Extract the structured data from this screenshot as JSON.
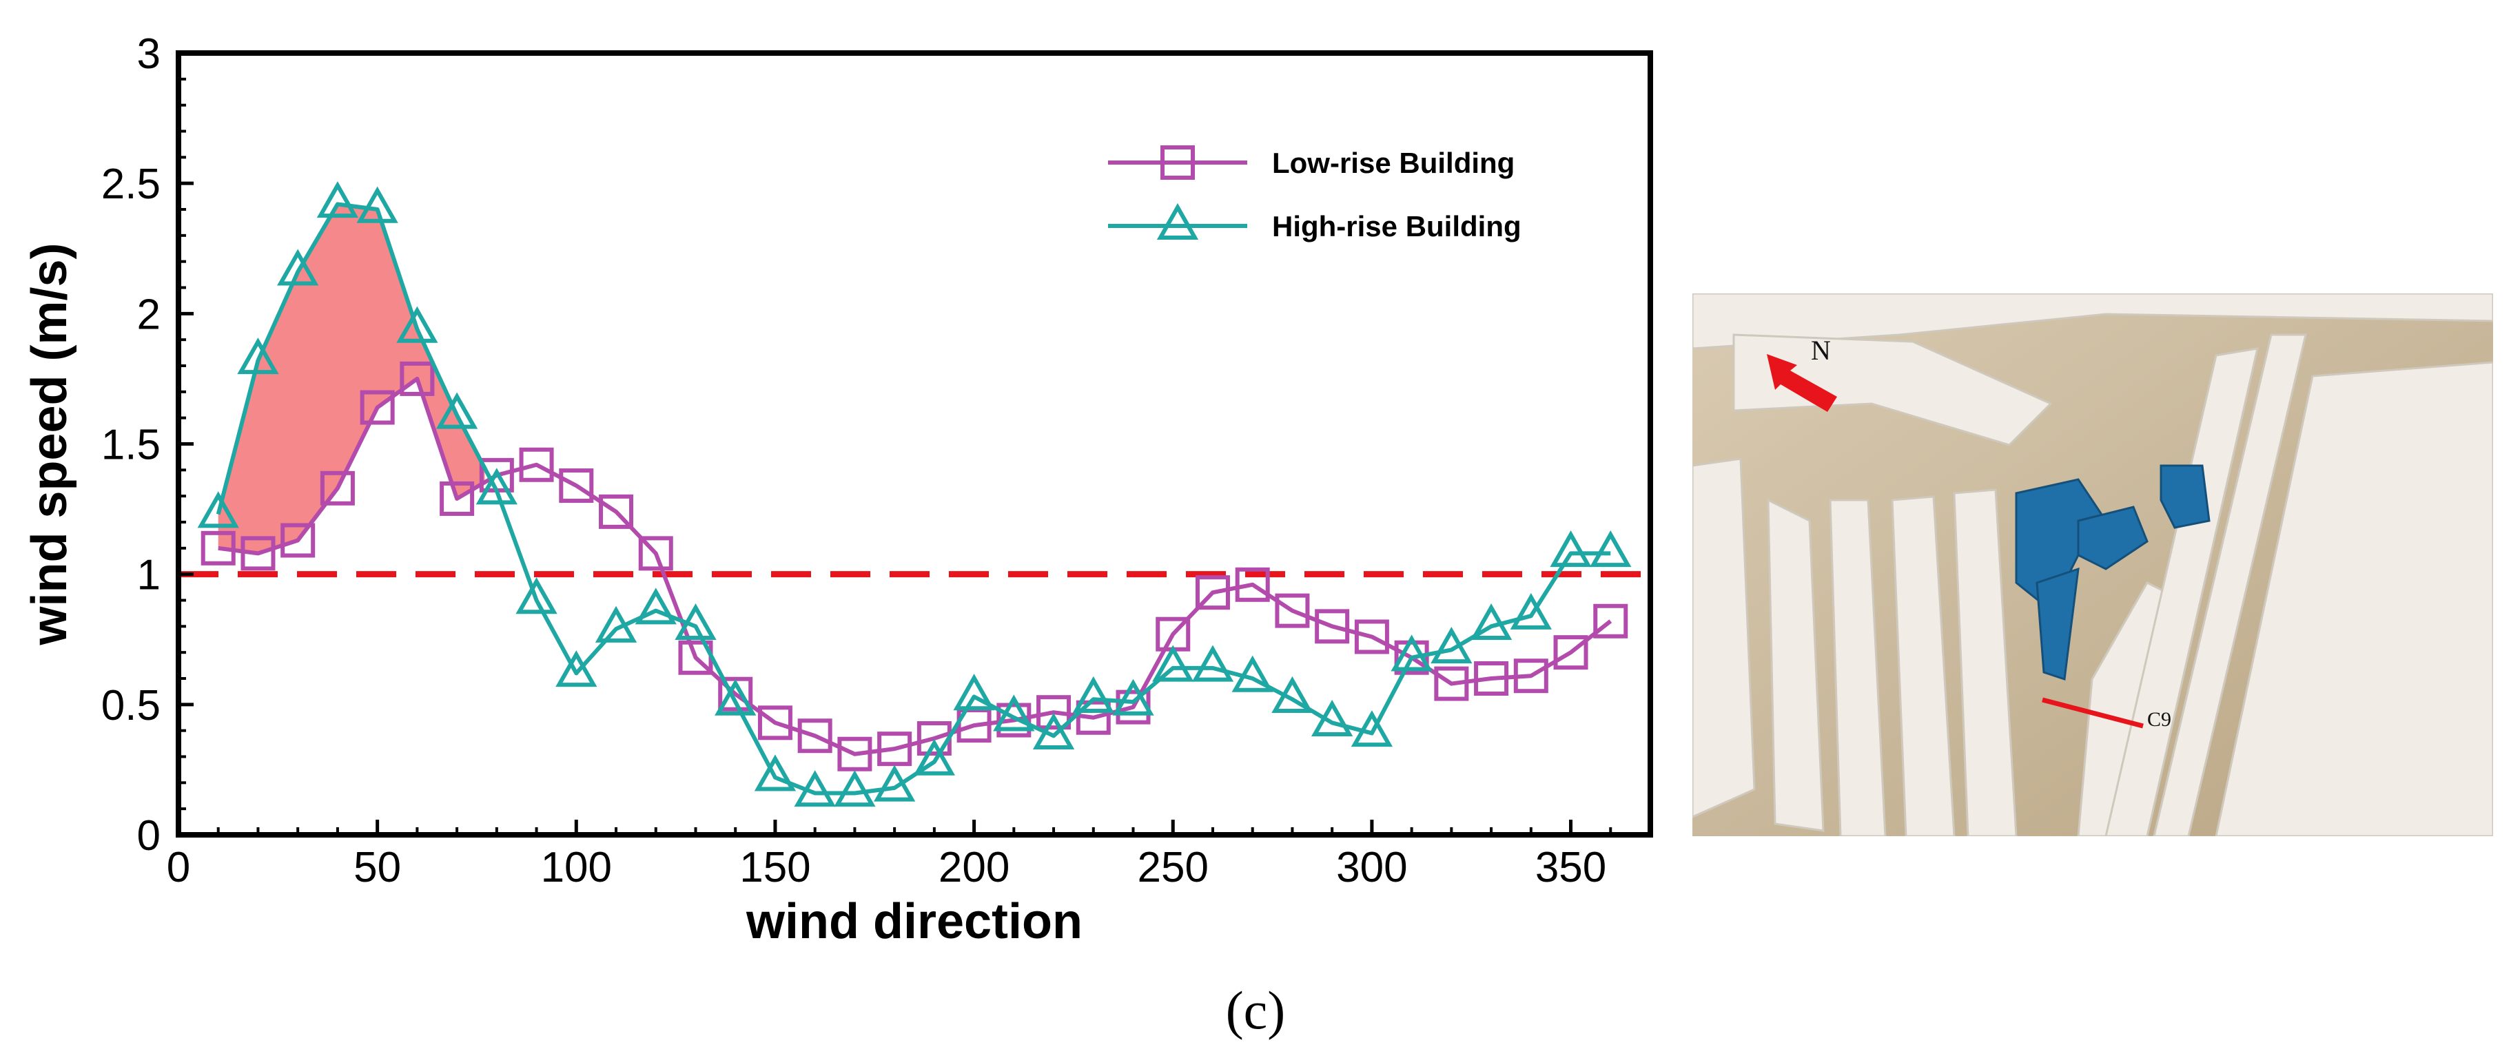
{
  "chart_data": {
    "type": "line",
    "xlabel": "wind direction",
    "ylabel": "wind speed (m/s)",
    "xlim": [
      0,
      370
    ],
    "ylim": [
      0,
      3
    ],
    "x_ticks": [
      0,
      50,
      100,
      150,
      200,
      250,
      300,
      350
    ],
    "y_ticks": [
      0,
      0.5,
      1,
      1.5,
      2,
      2.5,
      3
    ],
    "x_tick_labels": [
      "0",
      "50",
      "100",
      "150",
      "200",
      "250",
      "300",
      "350"
    ],
    "y_tick_labels": [
      "0",
      "0.5",
      "1",
      "1.5",
      "2",
      "2.5",
      "3"
    ],
    "grid": false,
    "legend_position": "top-right",
    "reference_line": {
      "y": 1,
      "style": "dashed",
      "color": "#e8141b"
    },
    "x": [
      10,
      20,
      30,
      40,
      50,
      60,
      70,
      80,
      90,
      100,
      110,
      120,
      130,
      140,
      150,
      160,
      170,
      180,
      190,
      200,
      210,
      220,
      230,
      240,
      250,
      260,
      270,
      280,
      290,
      300,
      310,
      320,
      330,
      340,
      350,
      360
    ],
    "series": [
      {
        "name": "Low-rise Building",
        "marker": "square",
        "color": "#b24bab",
        "values": [
          1.1,
          1.08,
          1.13,
          1.33,
          1.64,
          1.75,
          1.29,
          1.38,
          1.42,
          1.34,
          1.24,
          1.08,
          0.68,
          0.54,
          0.43,
          0.38,
          0.31,
          0.33,
          0.37,
          0.42,
          0.44,
          0.47,
          0.45,
          0.49,
          0.77,
          0.93,
          0.96,
          0.86,
          0.8,
          0.76,
          0.68,
          0.58,
          0.6,
          0.61,
          0.7,
          0.82
        ]
      },
      {
        "name": "High-rise Building",
        "marker": "triangle",
        "color": "#1fa8a3",
        "values": [
          1.23,
          1.82,
          2.16,
          2.42,
          2.4,
          1.94,
          1.61,
          1.32,
          0.9,
          0.62,
          0.79,
          0.86,
          0.8,
          0.51,
          0.22,
          0.16,
          0.16,
          0.18,
          0.28,
          0.53,
          0.45,
          0.38,
          0.52,
          0.51,
          0.64,
          0.64,
          0.6,
          0.52,
          0.43,
          0.39,
          0.68,
          0.71,
          0.8,
          0.84,
          1.08,
          1.08
        ]
      }
    ],
    "shaded_region": {
      "color": "#f4888a",
      "x_range": [
        10,
        77
      ],
      "between": [
        "Low-rise Building",
        "High-rise Building"
      ]
    }
  },
  "photo": {
    "north_label": "N",
    "section_label": "C9",
    "building_color": "#1f6fa8",
    "marker_color": "#e8141b"
  },
  "caption": "(c)"
}
